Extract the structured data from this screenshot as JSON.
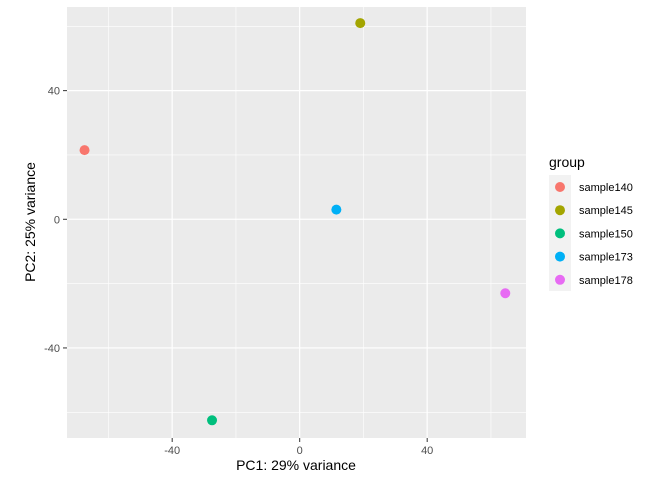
{
  "chart_data": {
    "type": "scatter",
    "xlabel": "PC1: 29% variance",
    "ylabel": "PC2: 25% variance",
    "xlim": [
      -73,
      71
    ],
    "ylim": [
      -68,
      66
    ],
    "x_ticks": [
      -40,
      0,
      40
    ],
    "y_ticks": [
      -40,
      0,
      40
    ],
    "grid": true,
    "legend": {
      "title": "group",
      "placement": "right"
    },
    "series": [
      {
        "name": "sample140",
        "color": "#F8766D",
        "x": [
          -67.5
        ],
        "y": [
          21.5
        ]
      },
      {
        "name": "sample145",
        "color": "#A3A500",
        "x": [
          19.0
        ],
        "y": [
          61.0
        ]
      },
      {
        "name": "sample150",
        "color": "#00BF7D",
        "x": [
          -27.5
        ],
        "y": [
          -62.5
        ]
      },
      {
        "name": "sample173",
        "color": "#00B0F6",
        "x": [
          11.5
        ],
        "y": [
          3.0
        ]
      },
      {
        "name": "sample178",
        "color": "#E76BF3",
        "x": [
          64.5
        ],
        "y": [
          -23.0
        ]
      }
    ]
  }
}
